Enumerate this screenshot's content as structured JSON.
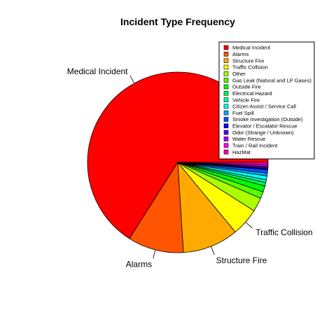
{
  "chart_data": {
    "type": "pie",
    "title": "Incident Type Frequency",
    "legend_position": "top-right",
    "slices": [
      {
        "label": "Medical Incident",
        "value": 66.0,
        "color": "#FF0000",
        "show_label": true
      },
      {
        "label": "Alarms",
        "value": 10.0,
        "color": "#FF5500",
        "show_label": true
      },
      {
        "label": "Structure Fire",
        "value": 10.0,
        "color": "#FFAA00",
        "show_label": true
      },
      {
        "label": "Traffic Collision",
        "value": 5.0,
        "color": "#FFFF00",
        "show_label": true
      },
      {
        "label": "Other",
        "value": 2.5,
        "color": "#AAFF00",
        "show_label": false
      },
      {
        "label": "Gas Leak (Natural and LP Gases)",
        "value": 1.2,
        "color": "#55FF00",
        "show_label": false
      },
      {
        "label": "Outside Fire",
        "value": 1.1,
        "color": "#00FF00",
        "show_label": false
      },
      {
        "label": "Electrical Hazard",
        "value": 0.6,
        "color": "#00FF55",
        "show_label": false
      },
      {
        "label": "Vehicle Fire",
        "value": 0.5,
        "color": "#00FFAA",
        "show_label": false
      },
      {
        "label": "Citizen Assist / Service Call",
        "value": 0.7,
        "color": "#00FFFF",
        "show_label": false
      },
      {
        "label": "Fuel Spill",
        "value": 0.5,
        "color": "#00AAFF",
        "show_label": false
      },
      {
        "label": "Smoke Investigation (Outside)",
        "value": 0.6,
        "color": "#0055FF",
        "show_label": false
      },
      {
        "label": "Elevator / Escalator Rescue",
        "value": 0.2,
        "color": "#0000FF",
        "show_label": false
      },
      {
        "label": "Odor (Strange / Unknown)",
        "value": 0.2,
        "color": "#5500FF",
        "show_label": false
      },
      {
        "label": "Water Rescue",
        "value": 0.2,
        "color": "#AA00FF",
        "show_label": false
      },
      {
        "label": "Train / Rail Incident",
        "value": 0.3,
        "color": "#FF00FF",
        "show_label": false
      },
      {
        "label": "HazMat",
        "value": 0.4,
        "color": "#FF00AA",
        "show_label": false
      }
    ]
  }
}
